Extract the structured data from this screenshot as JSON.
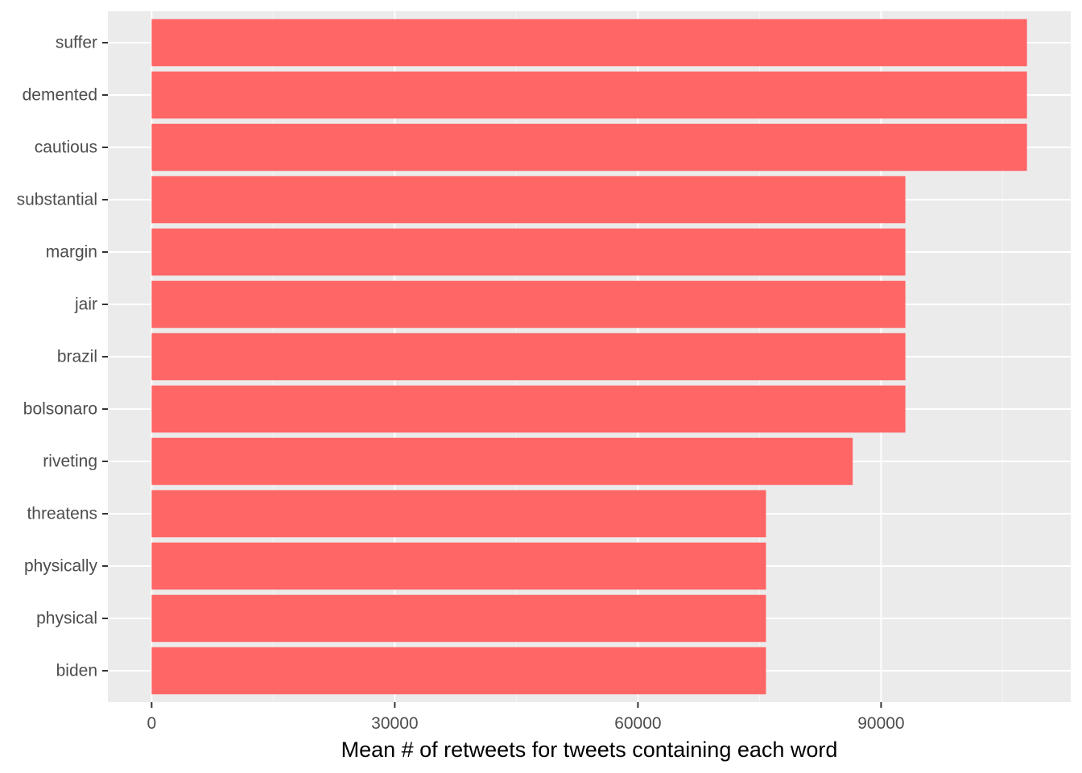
{
  "chart_data": {
    "type": "bar",
    "orientation": "horizontal",
    "categories": [
      "suffer",
      "demented",
      "cautious",
      "substantial",
      "margin",
      "jair",
      "brazil",
      "bolsonaro",
      "riveting",
      "threatens",
      "physically",
      "physical",
      "biden"
    ],
    "values": [
      108000,
      108000,
      108000,
      93000,
      93000,
      93000,
      93000,
      93000,
      86500,
      75800,
      75800,
      75800,
      75800
    ],
    "xlabel": "Mean # of retweets for tweets containing each word",
    "ylabel": "",
    "xlim": [
      -5400,
      113400
    ],
    "xticks": [
      0,
      30000,
      60000,
      90000
    ],
    "xtick_labels": [
      "0",
      "30000",
      "60000",
      "90000"
    ],
    "grid": true,
    "colors": {
      "bar": "#ff6666",
      "panel_background": "#ebebeb",
      "grid_major": "#ffffff",
      "grid_minor": "#f5f5f5",
      "tick_text": "#4d4d4d",
      "axis_title": "#000000"
    }
  }
}
